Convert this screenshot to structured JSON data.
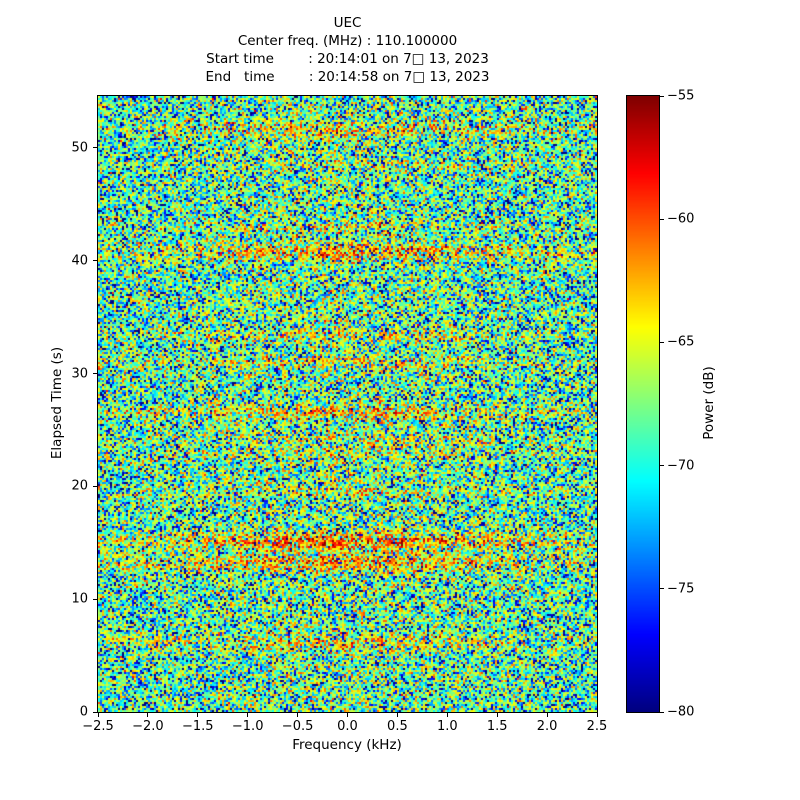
{
  "figure": {
    "background": "#ffffff",
    "text_color": "#000000"
  },
  "header": {
    "lines": [
      "UEC",
      "Center freq. (MHz) : 110.100000",
      "Start time        : 20:14:01 on 7□ 13, 2023",
      "End   time        : 20:14:58 on 7□ 13, 2023"
    ]
  },
  "chart_data": {
    "type": "heatmap",
    "title": "UEC",
    "center_freq_mhz": "110.100000",
    "start_time": "20:14:01 on 7□ 13, 2023",
    "end_time": "20:14:58 on 7□ 13, 2023",
    "xlabel": "Frequency (kHz)",
    "ylabel": "Elapsed Time (s)",
    "xlim": [
      -2.5,
      2.5
    ],
    "ylim": [
      0,
      54.6
    ],
    "xticks": [
      -2.5,
      -2.0,
      -1.5,
      -1.0,
      -0.5,
      0.0,
      0.5,
      1.0,
      1.5,
      2.0,
      2.5
    ],
    "xtick_labels": [
      "−2.5",
      "−2.0",
      "−1.5",
      "−1.0",
      "−0.5",
      "0.0",
      "0.5",
      "1.0",
      "1.5",
      "2.0",
      "2.5"
    ],
    "yticks": [
      0,
      10,
      20,
      30,
      40,
      50
    ],
    "ytick_labels": [
      "0",
      "10",
      "20",
      "30",
      "40",
      "50"
    ],
    "grid": false,
    "legend": null,
    "colorbar": {
      "label": "Power (dB)",
      "min": -80,
      "max": -55,
      "ticks": [
        -55,
        -60,
        -65,
        -70,
        -75,
        -80
      ],
      "tick_labels": [
        "−55",
        "−60",
        "−65",
        "−70",
        "−75",
        "−80"
      ],
      "colormap": "jet",
      "colormap_endpoints": {
        "low": "#000080",
        "mid": "#7cff7a",
        "high": "#800000"
      }
    },
    "noise": {
      "seed": 20230713,
      "cols": 250,
      "rows": 308,
      "ref_db": -67.5,
      "distribution": "exponential-power",
      "center_warmth_db": 1.0,
      "band_freq_sigma_khz": 1.5,
      "band_edge_floor": 0.35
    },
    "bands": [
      {
        "t": 51.6,
        "sigma": 0.45,
        "boost_db": 4.0
      },
      {
        "t": 48.5,
        "sigma": 0.35,
        "boost_db": 1.5
      },
      {
        "t": 43.0,
        "sigma": 0.35,
        "boost_db": 2.2
      },
      {
        "t": 40.8,
        "sigma": 0.5,
        "boost_db": 5.5
      },
      {
        "t": 33.4,
        "sigma": 0.35,
        "boost_db": 2.8
      },
      {
        "t": 31.0,
        "sigma": 0.4,
        "boost_db": 3.0
      },
      {
        "t": 26.6,
        "sigma": 0.45,
        "boost_db": 4.5
      },
      {
        "t": 24.2,
        "sigma": 0.35,
        "boost_db": 2.2
      },
      {
        "t": 22.8,
        "sigma": 0.35,
        "boost_db": 2.4
      },
      {
        "t": 19.5,
        "sigma": 0.35,
        "boost_db": 2.4
      },
      {
        "t": 15.1,
        "sigma": 0.55,
        "boost_db": 7.0
      },
      {
        "t": 13.2,
        "sigma": 0.5,
        "boost_db": 6.0
      },
      {
        "t": 6.4,
        "sigma": 0.4,
        "boost_db": 3.2
      },
      {
        "t": 5.7,
        "sigma": 0.3,
        "boost_db": 2.0
      }
    ]
  }
}
